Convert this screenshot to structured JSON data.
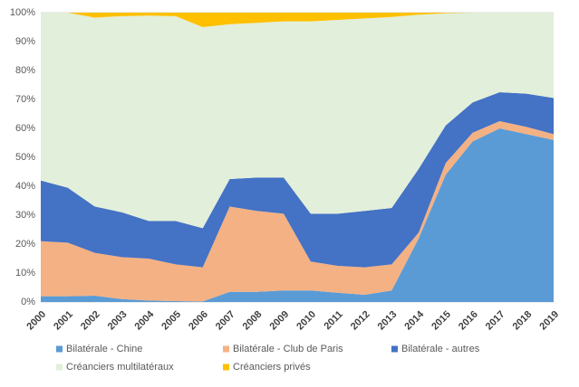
{
  "chart_data": {
    "type": "stacked_area",
    "categories": [
      "2000",
      "2001",
      "2002",
      "2003",
      "2004",
      "2005",
      "2006",
      "2007",
      "2008",
      "2009",
      "2010",
      "2011",
      "2012",
      "2013",
      "2014",
      "2015",
      "2016",
      "2017",
      "2018",
      "2019"
    ],
    "ylim": [
      0,
      100
    ],
    "yticks": [
      {
        "value": 0,
        "label": "0%"
      },
      {
        "value": 10,
        "label": "10%"
      },
      {
        "value": 20,
        "label": "20%"
      },
      {
        "value": 30,
        "label": "30%"
      },
      {
        "value": 40,
        "label": "40%"
      },
      {
        "value": 50,
        "label": "50%"
      },
      {
        "value": 60,
        "label": "60%"
      },
      {
        "value": 70,
        "label": "70%"
      },
      {
        "value": 80,
        "label": "80%"
      },
      {
        "value": 90,
        "label": "90%"
      },
      {
        "value": 100,
        "label": "100%"
      }
    ],
    "grid": true,
    "series": [
      {
        "name": "Bilatérale - Chine",
        "color": "#5b9bd5",
        "values": [
          2,
          2,
          2.2,
          1,
          0.5,
          0.3,
          0.2,
          3.5,
          3.5,
          4,
          4,
          3.2,
          2.5,
          4,
          22,
          44,
          55.5,
          60,
          58,
          56
        ]
      },
      {
        "name": "Bilatérale - Club de Paris",
        "color": "#f4b183",
        "values": [
          19,
          18.5,
          14.8,
          14.5,
          14.5,
          12.7,
          11.8,
          29.5,
          28,
          26.5,
          10,
          9.3,
          9.5,
          9,
          2,
          4,
          3,
          2.5,
          2.5,
          2
        ]
      },
      {
        "name": "Bilatérale - autres",
        "color": "#4472c4",
        "values": [
          21,
          19,
          16,
          15.5,
          13,
          15,
          13.5,
          9.5,
          11.5,
          12.5,
          16.5,
          18,
          19.5,
          19.5,
          22,
          13,
          10.5,
          10,
          11.5,
          12.5
        ]
      },
      {
        "name": "Créanciers multilatéraux",
        "color": "#e2efda",
        "values": [
          58,
          60.5,
          65.3,
          67.8,
          71,
          70.8,
          69.5,
          53.5,
          53.5,
          54,
          66.5,
          67,
          66.5,
          66,
          53.3,
          38.8,
          31,
          27.5,
          28,
          29.5
        ]
      },
      {
        "name": "Créanciers privés",
        "color": "#ffc000",
        "values": [
          0,
          0,
          1.7,
          1.2,
          1,
          1.2,
          5,
          4,
          3.5,
          3,
          3,
          2.5,
          2,
          1.5,
          0.7,
          0.2,
          0,
          0,
          0,
          0
        ]
      }
    ]
  }
}
